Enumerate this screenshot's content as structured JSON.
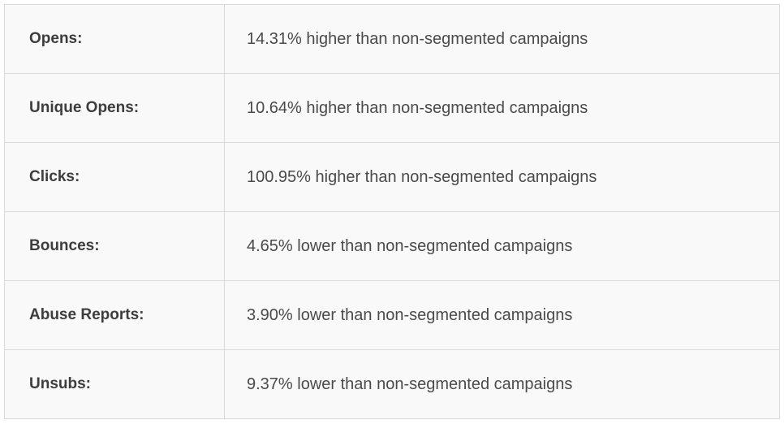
{
  "table": {
    "rows": [
      {
        "label": "Opens:",
        "value": "14.31% higher than non-segmented campaigns"
      },
      {
        "label": "Unique Opens:",
        "value": "10.64% higher than non-segmented campaigns"
      },
      {
        "label": "Clicks:",
        "value": "100.95% higher than non-segmented campaigns"
      },
      {
        "label": "Bounces:",
        "value": "4.65% lower than non-segmented campaigns"
      },
      {
        "label": "Abuse Reports:",
        "value": "3.90% lower than non-segmented campaigns"
      },
      {
        "label": "Unsubs:",
        "value": "9.37% lower than non-segmented campaigns"
      }
    ],
    "colors": {
      "cell_background": "#f9f9f9",
      "border": "#d9d9d9",
      "label_text": "#3d3d3d",
      "value_text": "#4a4a4a"
    }
  }
}
